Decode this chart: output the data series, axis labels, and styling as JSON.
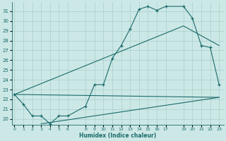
{
  "xlabel": "Humidex (Indice chaleur)",
  "bg_color": "#cce8e6",
  "grid_color": "#a8ceca",
  "line_color": "#1a6b6b",
  "x_ticks": [
    0,
    1,
    2,
    3,
    4,
    5,
    6,
    8,
    9,
    10,
    11,
    12,
    13,
    14,
    15,
    16,
    17,
    19,
    20,
    21,
    22,
    23
  ],
  "y_ticks": [
    20,
    21,
    22,
    23,
    24,
    25,
    26,
    27,
    28,
    29,
    30,
    31
  ],
  "ylim": [
    19.4,
    31.9
  ],
  "xlim": [
    -0.3,
    23.5
  ],
  "main_x": [
    0,
    1,
    2,
    3,
    4,
    5,
    6,
    8,
    9,
    10,
    11,
    12,
    13,
    14,
    15,
    16,
    17,
    19,
    20,
    21,
    22,
    23
  ],
  "main_y": [
    22.5,
    21.5,
    20.3,
    20.3,
    19.5,
    20.3,
    20.3,
    21.3,
    23.5,
    23.5,
    26.2,
    27.5,
    29.2,
    31.2,
    31.5,
    31.1,
    31.5,
    31.5,
    30.3,
    27.5,
    27.3,
    23.5
  ],
  "line1_x": [
    0,
    23
  ],
  "line1_y": [
    22.5,
    22.2
  ],
  "line2_x": [
    0,
    19,
    23
  ],
  "line2_y": [
    22.5,
    29.5,
    27.5
  ],
  "line3_x": [
    3,
    23
  ],
  "line3_y": [
    19.5,
    22.2
  ]
}
